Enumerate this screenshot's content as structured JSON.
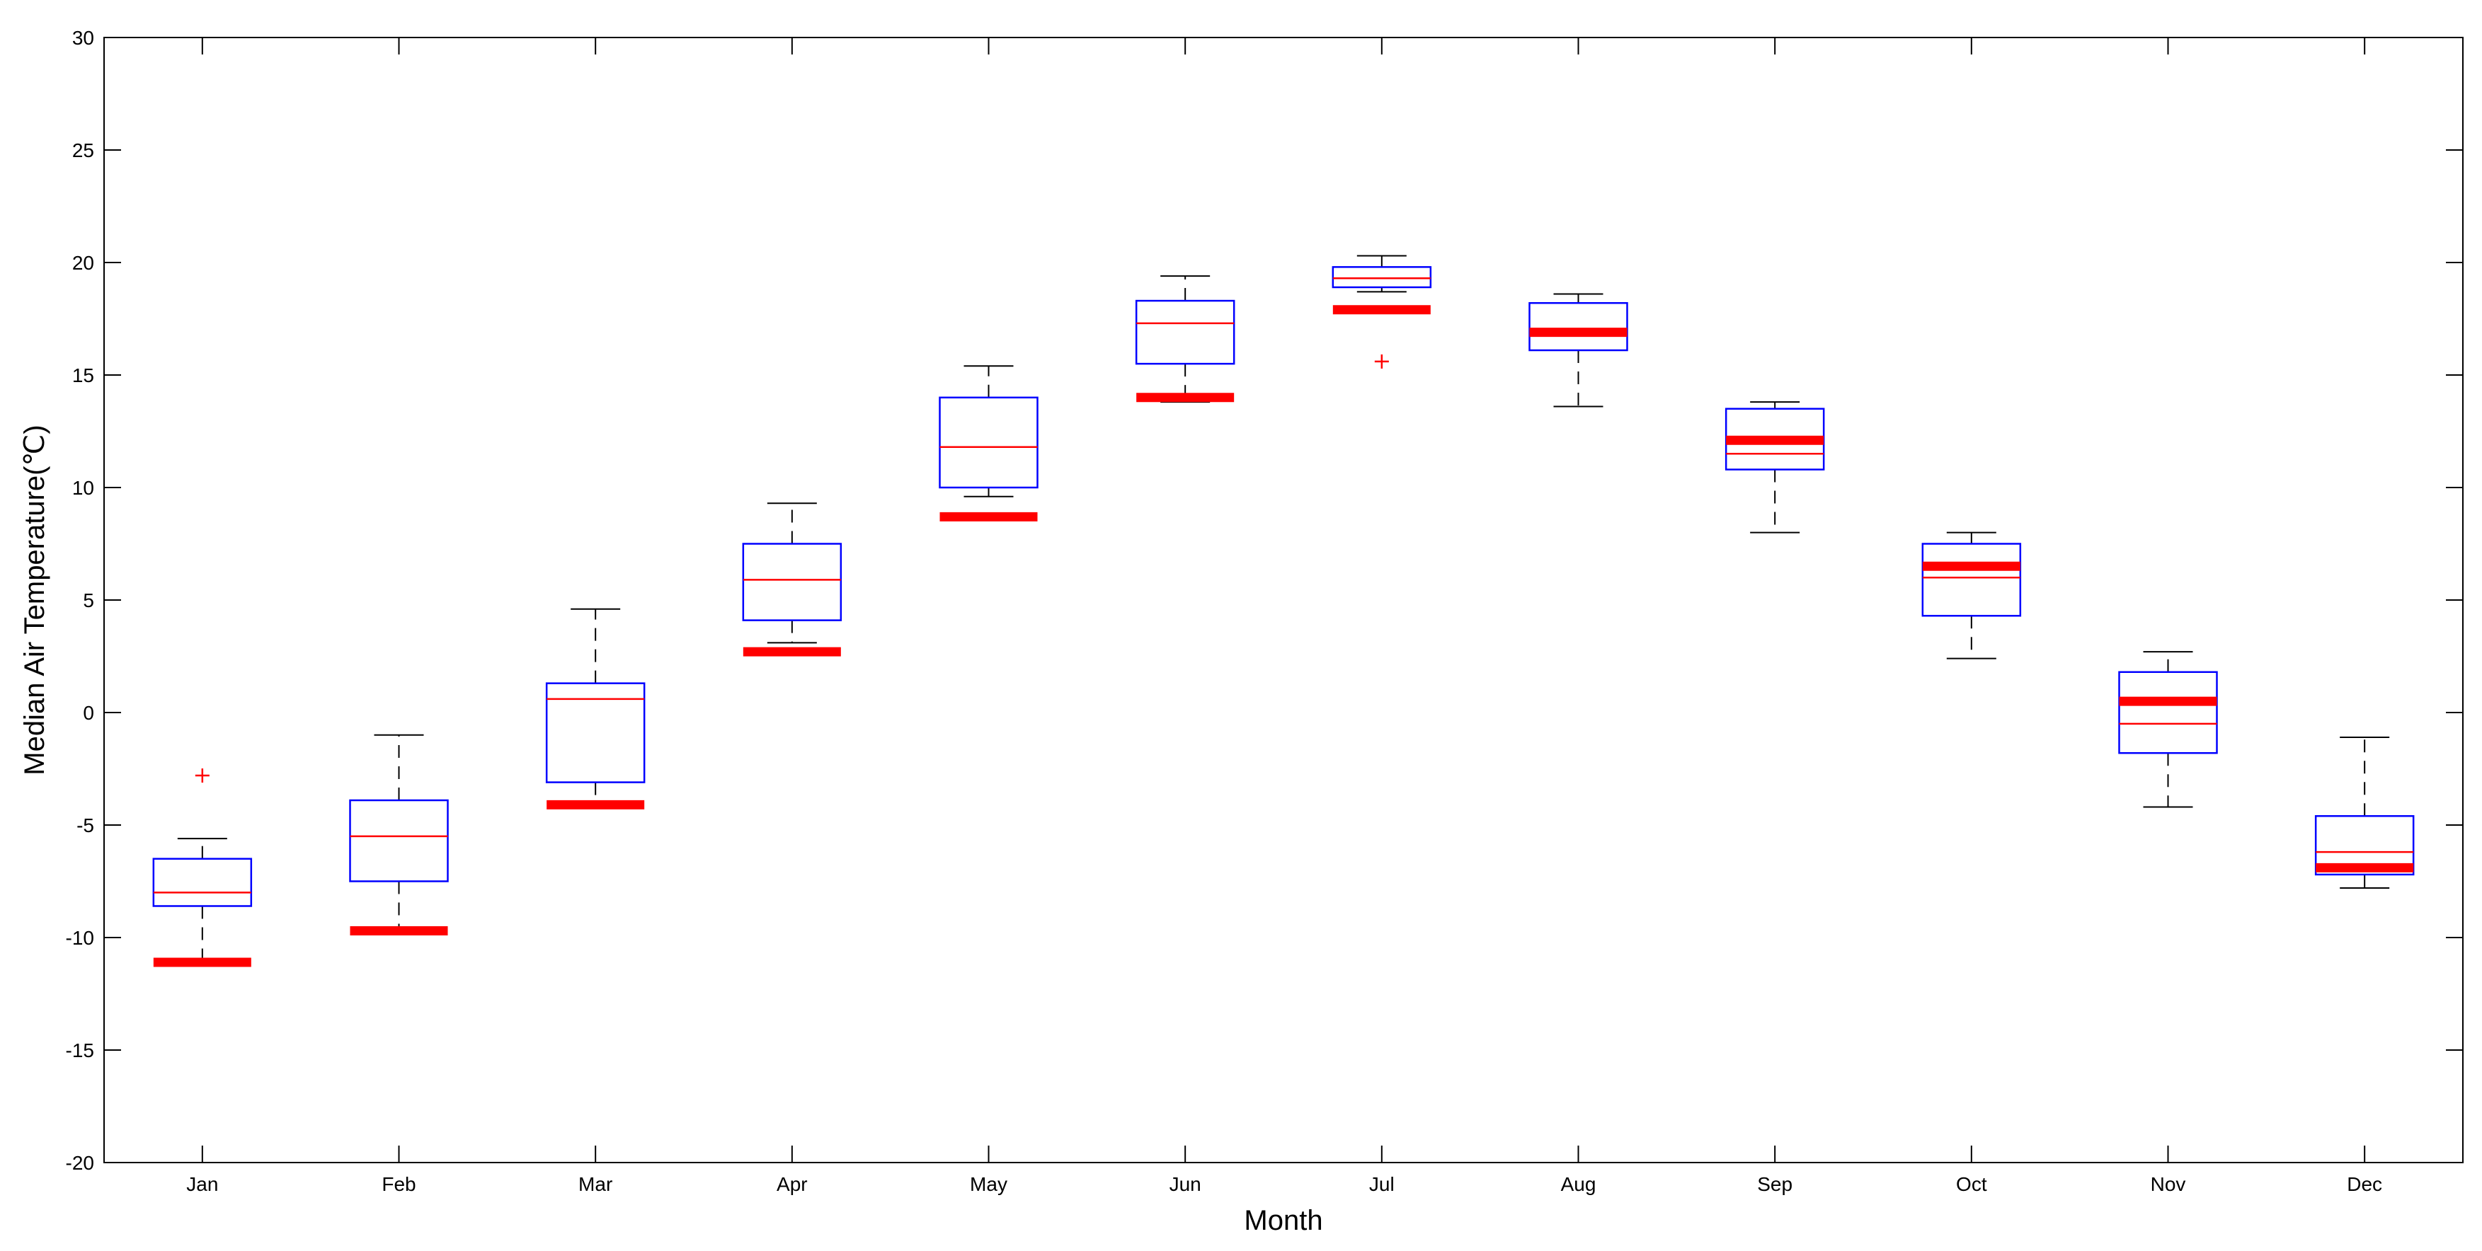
{
  "chart_data": {
    "type": "box",
    "xlabel": "Month",
    "ylabel": "Median Air Temperature(℃)",
    "ylim": [
      -20,
      30
    ],
    "yticks": [
      -20,
      -15,
      -10,
      -5,
      0,
      5,
      10,
      15,
      20,
      25,
      30
    ],
    "categories": [
      "Jan",
      "Feb",
      "Mar",
      "Apr",
      "May",
      "Jun",
      "Jul",
      "Aug",
      "Sep",
      "Oct",
      "Nov",
      "Dec"
    ],
    "boxes": [
      {
        "month": "Jan",
        "whisker_low": -11.2,
        "q1": -8.6,
        "median": -8.0,
        "q3": -6.5,
        "whisker_high": -5.6,
        "outliers": [
          -2.8
        ],
        "marker": -11.1
      },
      {
        "month": "Feb",
        "whisker_low": -9.6,
        "q1": -7.5,
        "median": -5.5,
        "q3": -3.9,
        "whisker_high": -1.0,
        "outliers": [],
        "marker": -9.7
      },
      {
        "month": "Mar",
        "whisker_low": -4.2,
        "q1": -3.1,
        "median": 0.6,
        "q3": 1.3,
        "whisker_high": 4.6,
        "outliers": [],
        "marker": -4.1
      },
      {
        "month": "Apr",
        "whisker_low": 3.1,
        "q1": 4.1,
        "median": 5.9,
        "q3": 7.5,
        "whisker_high": 9.3,
        "outliers": [],
        "marker": 2.7
      },
      {
        "month": "May",
        "whisker_low": 9.6,
        "q1": 10.0,
        "median": 11.8,
        "q3": 14.0,
        "whisker_high": 15.4,
        "outliers": [],
        "marker": 8.7
      },
      {
        "month": "Jun",
        "whisker_low": 13.8,
        "q1": 15.5,
        "median": 17.3,
        "q3": 18.3,
        "whisker_high": 19.4,
        "outliers": [],
        "marker": 14.0
      },
      {
        "month": "Jul",
        "whisker_low": 18.7,
        "q1": 18.9,
        "median": 19.3,
        "q3": 19.8,
        "whisker_high": 20.3,
        "outliers": [
          15.6
        ],
        "marker": 17.9
      },
      {
        "month": "Aug",
        "whisker_low": 13.6,
        "q1": 16.1,
        "median": 16.9,
        "q3": 18.2,
        "whisker_high": 18.6,
        "outliers": [],
        "marker": 16.9
      },
      {
        "month": "Sep",
        "whisker_low": 8.0,
        "q1": 10.8,
        "median": 11.5,
        "q3": 13.5,
        "whisker_high": 13.8,
        "outliers": [],
        "marker": 12.1
      },
      {
        "month": "Oct",
        "whisker_low": 2.4,
        "q1": 4.3,
        "median": 6.0,
        "q3": 7.5,
        "whisker_high": 8.0,
        "outliers": [],
        "marker": 6.5
      },
      {
        "month": "Nov",
        "whisker_low": -4.2,
        "q1": -1.8,
        "median": -0.5,
        "q3": 1.8,
        "whisker_high": 2.7,
        "outliers": [],
        "marker": 0.5
      },
      {
        "month": "Dec",
        "whisker_low": -7.8,
        "q1": -7.2,
        "median": -6.2,
        "q3": -4.6,
        "whisker_high": -1.1,
        "outliers": [],
        "marker": -6.9
      }
    ],
    "colors": {
      "box": "#0000ff",
      "median": "#ff0000",
      "marker": "#ff0000",
      "outlier": "#ff0000",
      "whisker": "#000000"
    }
  }
}
